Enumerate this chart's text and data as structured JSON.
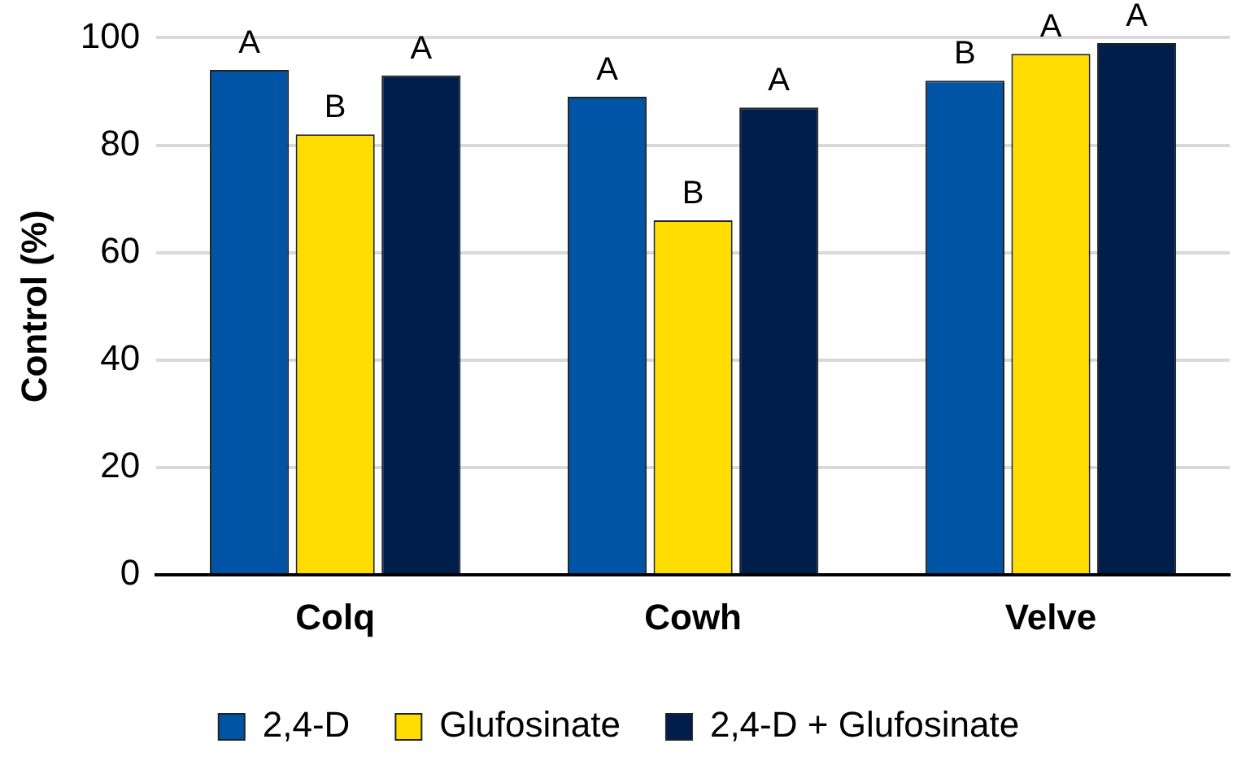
{
  "chart_data": {
    "type": "bar",
    "ylabel": "Control (%)",
    "categories": [
      "Colq",
      "Cowh",
      "Velve"
    ],
    "series": [
      {
        "name": "2,4-D",
        "color": "#0054a6",
        "values": [
          94,
          89,
          92
        ],
        "value_labels": [
          "A",
          "A",
          "B"
        ]
      },
      {
        "name": "Glufosinate",
        "color": "#ffdd00",
        "values": [
          82,
          66,
          97
        ],
        "value_labels": [
          "B",
          "B",
          "A"
        ]
      },
      {
        "name": "2,4-D + Glufosinate",
        "color": "#001e4c",
        "values": [
          93,
          87,
          99
        ],
        "value_labels": [
          "A",
          "A",
          "A"
        ]
      }
    ],
    "ylim": [
      0,
      100
    ],
    "yticks": [
      0,
      20,
      40,
      60,
      80,
      100
    ],
    "grid": "y",
    "legend": "bottom"
  }
}
